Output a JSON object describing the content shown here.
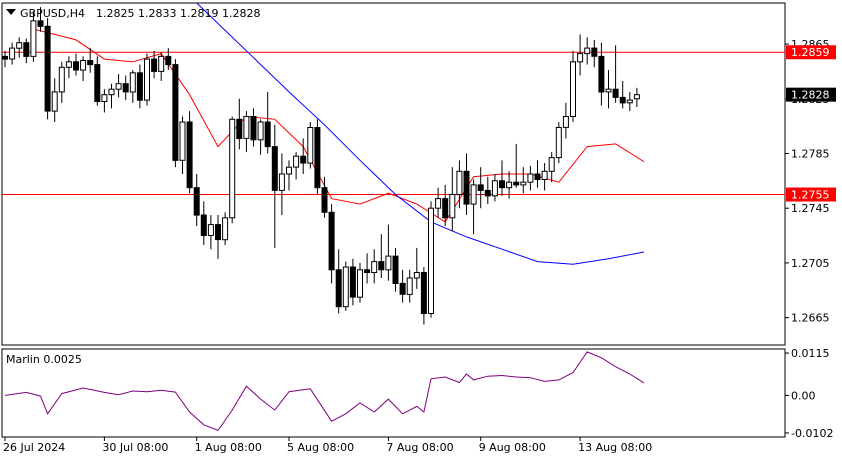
{
  "header": {
    "symbol": "GBPUSD,H4",
    "ohlc": "1.2825 1.2833 1.2819 1.2828"
  },
  "indicator": {
    "label": "Marlin 0.0025"
  },
  "colors": {
    "background": "#ffffff",
    "candle": "#000000",
    "level_line": "#ff0000",
    "red_ma": "#ff0000",
    "blue_ma": "#0000ff",
    "oscillator": "#800080",
    "price_tag": "#ff0000",
    "current_tag": "#000000"
  },
  "chart_data": [
    {
      "type": "candlestick",
      "pane": "main",
      "ylim": [
        1.2645,
        1.2895
      ],
      "yticks": [
        "1.2865",
        "1.2825",
        "1.2785",
        "1.2745",
        "1.2705",
        "1.2665"
      ],
      "xticks": [
        "26 Jul 2024",
        "30 Jul 08:00",
        "1 Aug 08:00",
        "5 Aug 08:00",
        "7 Aug 08:00",
        "9 Aug 08:00",
        "13 Aug 08:00"
      ],
      "horizontal_levels": [
        {
          "value": 1.2859,
          "label": "1.2859"
        },
        {
          "value": 1.2755,
          "label": "1.2755"
        }
      ],
      "current_price": {
        "value": 1.2828,
        "label": "1.2828"
      },
      "candles": [
        [
          1.2856,
          1.286,
          1.2848,
          1.2854
        ],
        [
          1.2854,
          1.2866,
          1.285,
          1.2862
        ],
        [
          1.2862,
          1.287,
          1.2855,
          1.2866
        ],
        [
          1.2866,
          1.2869,
          1.2851,
          1.2856
        ],
        [
          1.2856,
          1.2889,
          1.2852,
          1.2882
        ],
        [
          1.2882,
          1.2892,
          1.2874,
          1.2878
        ],
        [
          1.2878,
          1.2884,
          1.281,
          1.2816
        ],
        [
          1.2816,
          1.284,
          1.2808,
          1.283
        ],
        [
          1.283,
          1.2852,
          1.2822,
          1.2848
        ],
        [
          1.2848,
          1.2856,
          1.284,
          1.2852
        ],
        [
          1.2852,
          1.2858,
          1.2842,
          1.2846
        ],
        [
          1.2846,
          1.2856,
          1.2838,
          1.2853
        ],
        [
          1.2853,
          1.2862,
          1.2844,
          1.285
        ],
        [
          1.285,
          1.2856,
          1.282,
          1.2823
        ],
        [
          1.2823,
          1.2832,
          1.2815,
          1.2828
        ],
        [
          1.2828,
          1.2836,
          1.2818,
          1.2832
        ],
        [
          1.2832,
          1.2843,
          1.2826,
          1.2836
        ],
        [
          1.2836,
          1.2842,
          1.2824,
          1.283
        ],
        [
          1.283,
          1.2846,
          1.2822,
          1.2844
        ],
        [
          1.2844,
          1.285,
          1.2818,
          1.2824
        ],
        [
          1.2824,
          1.2858,
          1.282,
          1.2854
        ],
        [
          1.2854,
          1.286,
          1.284,
          1.2845
        ],
        [
          1.2845,
          1.2859,
          1.2838,
          1.2856
        ],
        [
          1.2856,
          1.2862,
          1.2846,
          1.285
        ],
        [
          1.285,
          1.2854,
          1.2775,
          1.278
        ],
        [
          1.278,
          1.2812,
          1.277,
          1.2808
        ],
        [
          1.2808,
          1.2816,
          1.2756,
          1.276
        ],
        [
          1.276,
          1.277,
          1.2732,
          1.274
        ],
        [
          1.274,
          1.275,
          1.2718,
          1.2725
        ],
        [
          1.2725,
          1.274,
          1.2715,
          1.2733
        ],
        [
          1.2733,
          1.274,
          1.2708,
          1.2722
        ],
        [
          1.2722,
          1.2742,
          1.2718,
          1.2738
        ],
        [
          1.2738,
          1.2812,
          1.2734,
          1.281
        ],
        [
          1.281,
          1.2825,
          1.2788,
          1.2796
        ],
        [
          1.2796,
          1.2816,
          1.2786,
          1.2812
        ],
        [
          1.2812,
          1.2818,
          1.279,
          1.2795
        ],
        [
          1.2795,
          1.281,
          1.2784,
          1.2808
        ],
        [
          1.2808,
          1.283,
          1.2785,
          1.279
        ],
        [
          1.279,
          1.2806,
          1.2716,
          1.2758
        ],
        [
          1.2758,
          1.2785,
          1.274,
          1.277
        ],
        [
          1.277,
          1.278,
          1.2758,
          1.2775
        ],
        [
          1.2775,
          1.2786,
          1.2766,
          1.2783
        ],
        [
          1.2783,
          1.2796,
          1.277,
          1.2778
        ],
        [
          1.2778,
          1.2808,
          1.2774,
          1.2804
        ],
        [
          1.2804,
          1.281,
          1.2755,
          1.276
        ],
        [
          1.276,
          1.2768,
          1.2738,
          1.2742
        ],
        [
          1.2742,
          1.2748,
          1.269,
          1.27
        ],
        [
          1.27,
          1.2715,
          1.2668,
          1.2673
        ],
        [
          1.2673,
          1.2706,
          1.267,
          1.2702
        ],
        [
          1.2702,
          1.2708,
          1.2674,
          1.268
        ],
        [
          1.268,
          1.2705,
          1.2676,
          1.27
        ],
        [
          1.27,
          1.2712,
          1.269,
          1.2698
        ],
        [
          1.2698,
          1.2715,
          1.269,
          1.2706
        ],
        [
          1.2706,
          1.2726,
          1.2694,
          1.27
        ],
        [
          1.27,
          1.2733,
          1.2692,
          1.271
        ],
        [
          1.271,
          1.2716,
          1.2684,
          1.269
        ],
        [
          1.269,
          1.27,
          1.2676,
          1.2682
        ],
        [
          1.2682,
          1.27,
          1.2676,
          1.2694
        ],
        [
          1.2694,
          1.2716,
          1.2686,
          1.2698
        ],
        [
          1.2698,
          1.2702,
          1.266,
          1.2668
        ],
        [
          1.2668,
          1.275,
          1.2665,
          1.2745
        ],
        [
          1.2745,
          1.276,
          1.2738,
          1.2752
        ],
        [
          1.2752,
          1.2762,
          1.2732,
          1.2738
        ],
        [
          1.2738,
          1.2775,
          1.2728,
          1.2755
        ],
        [
          1.2755,
          1.278,
          1.2745,
          1.2772
        ],
        [
          1.2772,
          1.2785,
          1.274,
          1.2748
        ],
        [
          1.2748,
          1.2766,
          1.2726,
          1.2762
        ],
        [
          1.2762,
          1.2775,
          1.2745,
          1.2758
        ],
        [
          1.2758,
          1.2768,
          1.2748,
          1.2754
        ],
        [
          1.2754,
          1.277,
          1.275,
          1.2765
        ],
        [
          1.2765,
          1.278,
          1.2754,
          1.276
        ],
        [
          1.276,
          1.2772,
          1.2752,
          1.2764
        ],
        [
          1.2764,
          1.2792,
          1.276,
          1.2762
        ],
        [
          1.2762,
          1.2775,
          1.2756,
          1.2764
        ],
        [
          1.2764,
          1.2776,
          1.2758,
          1.277
        ],
        [
          1.277,
          1.278,
          1.276,
          1.2766
        ],
        [
          1.2766,
          1.2778,
          1.2758,
          1.2772
        ],
        [
          1.2772,
          1.2786,
          1.2764,
          1.2782
        ],
        [
          1.2782,
          1.2808,
          1.2778,
          1.2804
        ],
        [
          1.2804,
          1.2822,
          1.2796,
          1.2812
        ],
        [
          1.2812,
          1.286,
          1.2808,
          1.2852
        ],
        [
          1.2852,
          1.2872,
          1.2842,
          1.2858
        ],
        [
          1.2858,
          1.287,
          1.285,
          1.2862
        ],
        [
          1.2862,
          1.2868,
          1.2848,
          1.2856
        ],
        [
          1.2856,
          1.2866,
          1.282,
          1.283
        ],
        [
          1.283,
          1.2846,
          1.2818,
          1.2832
        ],
        [
          1.2832,
          1.2864,
          1.2822,
          1.2826
        ],
        [
          1.2826,
          1.2838,
          1.2818,
          1.2822
        ],
        [
          1.2822,
          1.283,
          1.2816,
          1.2824
        ],
        [
          1.2825,
          1.2833,
          1.2819,
          1.2828
        ]
      ],
      "red_ma": [
        [
          4,
          1.2876
        ],
        [
          10,
          1.2868
        ],
        [
          14,
          1.2854
        ],
        [
          18,
          1.2852
        ],
        [
          22,
          1.2858
        ],
        [
          26,
          1.2828
        ],
        [
          30,
          1.279
        ],
        [
          34,
          1.2812
        ],
        [
          38,
          1.281
        ],
        [
          42,
          1.279
        ],
        [
          46,
          1.2752
        ],
        [
          50,
          1.2748
        ],
        [
          54,
          1.2756
        ],
        [
          58,
          1.2748
        ],
        [
          62,
          1.2735
        ],
        [
          66,
          1.2768
        ],
        [
          70,
          1.277
        ],
        [
          74,
          1.277
        ],
        [
          78,
          1.2764
        ],
        [
          82,
          1.279
        ],
        [
          86,
          1.2792
        ],
        [
          90,
          1.2779
        ]
      ],
      "blue_ma": [
        [
          27,
          1.2895
        ],
        [
          30,
          1.288
        ],
        [
          35,
          1.2855
        ],
        [
          40,
          1.283
        ],
        [
          45,
          1.2806
        ],
        [
          50,
          1.278
        ],
        [
          55,
          1.2755
        ],
        [
          60,
          1.2735
        ],
        [
          65,
          1.2724
        ],
        [
          70,
          1.2715
        ],
        [
          75,
          1.2706
        ],
        [
          80,
          1.2704
        ],
        [
          85,
          1.2708
        ],
        [
          90,
          1.2713
        ]
      ]
    },
    {
      "type": "line",
      "pane": "indicator",
      "ylim": [
        -0.0113,
        0.0126
      ],
      "yticks": [
        "0.0115",
        "0.00",
        "-0.0102"
      ],
      "series": [
        {
          "values": [
            [
              0,
              0.0
            ],
            [
              3,
              0.0008
            ],
            [
              5,
              -0.0002
            ],
            [
              6,
              -0.005
            ],
            [
              8,
              0.0005
            ],
            [
              11,
              0.002
            ],
            [
              14,
              0.0008
            ],
            [
              16,
              0.0002
            ],
            [
              18,
              0.0012
            ],
            [
              20,
              0.001
            ],
            [
              22,
              0.0014
            ],
            [
              24,
              0.0009
            ],
            [
              26,
              -0.0045
            ],
            [
              28,
              -0.008
            ],
            [
              30,
              -0.0095
            ],
            [
              32,
              -0.004
            ],
            [
              34,
              0.0025
            ],
            [
              36,
              -0.001
            ],
            [
              38,
              -0.004
            ],
            [
              40,
              0.001
            ],
            [
              43,
              0.0018
            ],
            [
              46,
              -0.007
            ],
            [
              48,
              -0.005
            ],
            [
              50,
              -0.002
            ],
            [
              52,
              -0.0045
            ],
            [
              54,
              -0.001
            ],
            [
              56,
              -0.005
            ],
            [
              58,
              -0.003
            ],
            [
              59,
              -0.0045
            ],
            [
              60,
              0.0045
            ],
            [
              62,
              0.005
            ],
            [
              64,
              0.0035
            ],
            [
              65,
              0.0058
            ],
            [
              66,
              0.0042
            ],
            [
              68,
              0.0052
            ],
            [
              70,
              0.0054
            ],
            [
              72,
              0.005
            ],
            [
              74,
              0.0048
            ],
            [
              76,
              0.0038
            ],
            [
              78,
              0.0042
            ],
            [
              80,
              0.0062
            ],
            [
              82,
              0.0118
            ],
            [
              84,
              0.0102
            ],
            [
              86,
              0.0078
            ],
            [
              88,
              0.0058
            ],
            [
              90,
              0.0034
            ]
          ]
        }
      ]
    }
  ]
}
